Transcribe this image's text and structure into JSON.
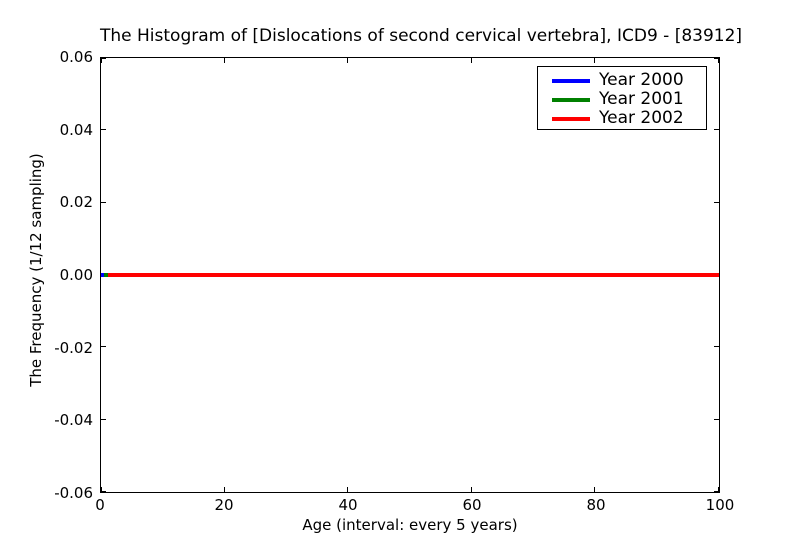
{
  "figure": {
    "background_color": "#ffffff",
    "axis_color": "#000000"
  },
  "chart_data": {
    "type": "line",
    "title": "The Histogram of [Dislocations of second cervical vertebra], ICD9 - [83912]",
    "xlabel": "Age (interval: every 5 years)",
    "ylabel": "The Frequency (1/12 sampling)",
    "xlim": [
      0,
      100
    ],
    "ylim": [
      -0.06,
      0.06
    ],
    "x_ticks": [
      0,
      20,
      40,
      60,
      80,
      100
    ],
    "x_tick_labels": [
      "0",
      "20",
      "40",
      "60",
      "80",
      "100"
    ],
    "y_ticks": [
      0.06,
      0.04,
      0.02,
      0.0,
      -0.02,
      -0.04,
      -0.06
    ],
    "y_tick_labels": [
      "0.06",
      "0.04",
      "0.02",
      "0.00",
      "-0.02",
      "-0.04",
      "-0.06"
    ],
    "grid": false,
    "tick_direction": "in",
    "legend_position": "upper right",
    "series": [
      {
        "name": "Year 2000",
        "color": "#0000ff",
        "x": [
          0,
          100
        ],
        "values": [
          0,
          0
        ]
      },
      {
        "name": "Year 2001",
        "color": "#008000",
        "x": [
          0,
          100
        ],
        "values": [
          0,
          0
        ]
      },
      {
        "name": "Year 2002",
        "color": "#ff0000",
        "x": [
          0,
          100
        ],
        "values": [
          0,
          0
        ]
      }
    ]
  }
}
